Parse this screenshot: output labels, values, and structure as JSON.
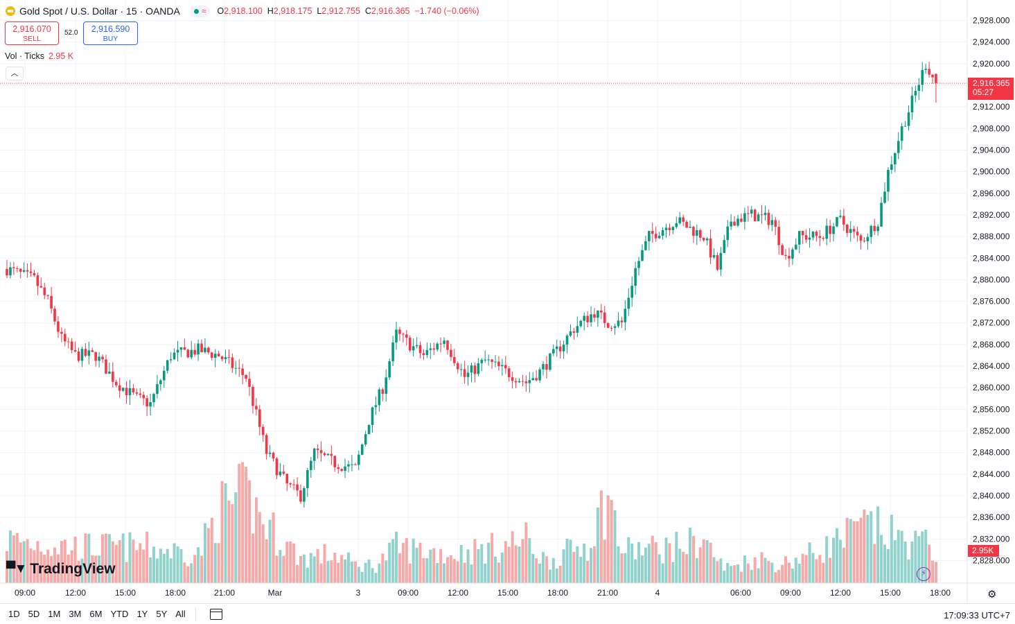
{
  "header": {
    "title": "Gold Spot / U.S. Dollar · 15 · OANDA",
    "ohlc": {
      "open_label": "O",
      "open": "2,918.100",
      "high_label": "H",
      "high": "2,918.175",
      "low_label": "L",
      "low": "2,912.755",
      "close_label": "C",
      "close": "2,916.365",
      "change": "−1.740 (−0.06%)"
    },
    "market_open_color": "#089981"
  },
  "trade": {
    "sell_price": "2,916.070",
    "sell_label": "SELL",
    "spread": "52.0",
    "buy_price": "2,916.590",
    "buy_label": "BUY"
  },
  "volume_legend": {
    "label": "Vol · Ticks",
    "value": "2.95 K"
  },
  "last_price": {
    "price": "2,916.365",
    "countdown": "05:27",
    "volume": "2.95K"
  },
  "brand": "TradingView",
  "bottom_bar": {
    "ranges": [
      "1D",
      "5D",
      "1M",
      "3M",
      "6M",
      "YTD",
      "1Y",
      "5Y",
      "All"
    ],
    "clock": "17:09:33 UTC+7"
  },
  "colors": {
    "up": "#089981",
    "down": "#f23645",
    "up_volume": "#92d2cc",
    "down_volume": "#f7a9a7",
    "grid": "#f0f3fa"
  },
  "chart_data": {
    "type": "candlestick",
    "instrument": "Gold Spot / U.S. Dollar",
    "interval": "15",
    "y_ticks": [
      "2,828.000",
      "2,832.000",
      "2,836.000",
      "2,840.000",
      "2,844.000",
      "2,848.000",
      "2,852.000",
      "2,856.000",
      "2,860.000",
      "2,864.000",
      "2,868.000",
      "2,872.000",
      "2,876.000",
      "2,880.000",
      "2,884.000",
      "2,888.000",
      "2,892.000",
      "2,896.000",
      "2,900.000",
      "2,904.000",
      "2,908.000",
      "2,912.000",
      "2,916.000",
      "2,920.000",
      "2,924.000",
      "2,928.000"
    ],
    "x_ticks": [
      "09:00",
      "12:00",
      "15:00",
      "18:00",
      "21:00",
      "Mar",
      "3",
      "09:00",
      "12:00",
      "15:00",
      "18:00",
      "21:00",
      "4",
      "06:00",
      "09:00",
      "12:00",
      "15:00",
      "18:00"
    ],
    "ylim": [
      2825.5,
      2932.5
    ],
    "grid": true,
    "anchors": [
      [
        0,
        2882
      ],
      [
        8,
        2880
      ],
      [
        12,
        2876
      ],
      [
        16,
        2869
      ],
      [
        20,
        2866
      ],
      [
        26,
        2866
      ],
      [
        32,
        2861
      ],
      [
        38,
        2858
      ],
      [
        42,
        2857
      ],
      [
        48,
        2866
      ],
      [
        56,
        2867
      ],
      [
        62,
        2866
      ],
      [
        70,
        2862
      ],
      [
        76,
        2848
      ],
      [
        82,
        2842
      ],
      [
        86,
        2840
      ],
      [
        90,
        2848
      ],
      [
        96,
        2846
      ],
      [
        102,
        2845
      ],
      [
        106,
        2854
      ],
      [
        110,
        2860
      ],
      [
        114,
        2870
      ],
      [
        118,
        2868
      ],
      [
        122,
        2866
      ],
      [
        128,
        2869
      ],
      [
        134,
        2862
      ],
      [
        140,
        2865
      ],
      [
        146,
        2863
      ],
      [
        152,
        2861
      ],
      [
        156,
        2863
      ],
      [
        160,
        2866
      ],
      [
        166,
        2871
      ],
      [
        172,
        2874
      ],
      [
        176,
        2872
      ],
      [
        180,
        2872
      ],
      [
        184,
        2882
      ],
      [
        188,
        2888
      ],
      [
        196,
        2891
      ],
      [
        204,
        2888
      ],
      [
        208,
        2882
      ],
      [
        212,
        2891
      ],
      [
        218,
        2892
      ],
      [
        224,
        2891
      ],
      [
        228,
        2884
      ],
      [
        232,
        2888
      ],
      [
        238,
        2888
      ],
      [
        244,
        2891
      ],
      [
        250,
        2887
      ],
      [
        255,
        2891
      ],
      [
        258,
        2900
      ],
      [
        262,
        2908
      ],
      [
        265,
        2913
      ],
      [
        269,
        2920
      ],
      [
        272,
        2916.365
      ]
    ],
    "volume_anchors": [
      [
        0,
        12
      ],
      [
        20,
        10
      ],
      [
        40,
        10
      ],
      [
        56,
        8
      ],
      [
        62,
        20
      ],
      [
        70,
        24
      ],
      [
        76,
        16
      ],
      [
        86,
        7
      ],
      [
        96,
        8
      ],
      [
        102,
        5
      ],
      [
        108,
        5
      ],
      [
        114,
        10
      ],
      [
        130,
        8
      ],
      [
        144,
        10
      ],
      [
        152,
        12
      ],
      [
        158,
        6
      ],
      [
        170,
        11
      ],
      [
        176,
        24
      ],
      [
        180,
        9
      ],
      [
        196,
        10
      ],
      [
        204,
        12
      ],
      [
        210,
        4
      ],
      [
        220,
        7
      ],
      [
        226,
        5
      ],
      [
        238,
        9
      ],
      [
        252,
        16
      ],
      [
        262,
        12
      ],
      [
        272,
        10
      ]
    ],
    "volume_labels": {
      "last": "2.95K"
    },
    "last_close": 2916.365,
    "candle_count": 273
  }
}
